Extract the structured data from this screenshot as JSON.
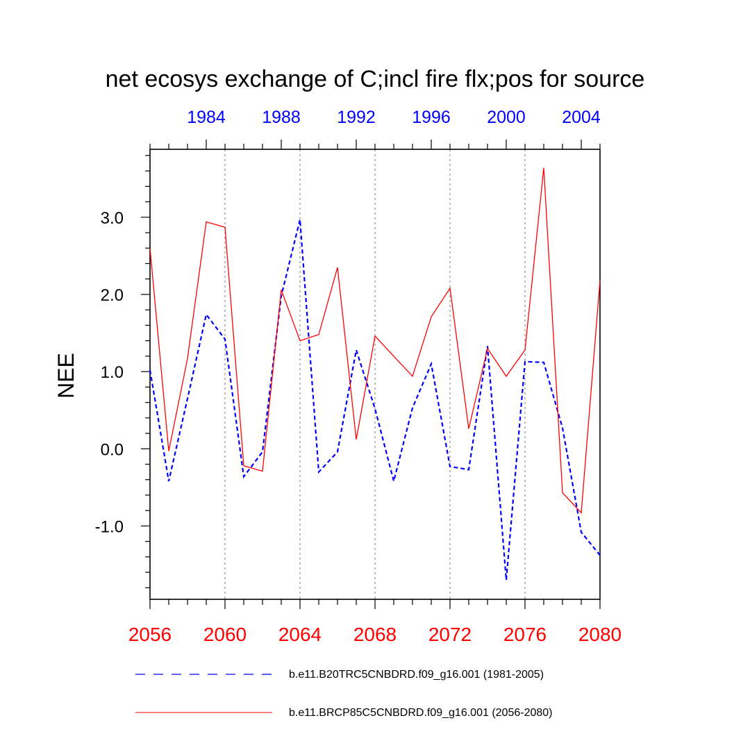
{
  "chart_data": {
    "type": "line",
    "title": "net ecosys exchange of C;incl fire flx;pos for source",
    "ylabel": "NEE",
    "xlabel": "",
    "ylim": [
      -1.95,
      3.88
    ],
    "y_ticks": [
      -1.0,
      0.0,
      1.0,
      2.0,
      3.0
    ],
    "y_tick_labels": [
      "-1.0",
      "0.0",
      "1.0",
      "2.0",
      "3.0"
    ],
    "y_minor_step": 0.2,
    "grid": "vertical dotted gray lines at labeled bottom-axis years",
    "x_bottom": {
      "range": [
        2056,
        2080
      ],
      "ticks": [
        2056,
        2060,
        2064,
        2068,
        2072,
        2076,
        2080
      ],
      "tick_labels": [
        "2056",
        "2060",
        "2064",
        "2068",
        "2072",
        "2076",
        "2080"
      ],
      "color": "#ff0000"
    },
    "x_top": {
      "range": [
        1981,
        2005
      ],
      "ticks": [
        1984,
        1988,
        1992,
        1996,
        2000,
        2004
      ],
      "tick_labels": [
        "1984",
        "1988",
        "1992",
        "1996",
        "2000",
        "2004"
      ],
      "color": "#0000ff"
    },
    "legend_position": "below plot",
    "series": [
      {
        "name": "b.e11.B20TRC5CNBDRD.f09_g16.001 (1981-2005)",
        "axis": "top",
        "color": "#0000ff",
        "style": "dashed",
        "x": [
          1981,
          1982,
          1983,
          1984,
          1985,
          1986,
          1987,
          1988,
          1989,
          1990,
          1991,
          1992,
          1993,
          1994,
          1995,
          1996,
          1997,
          1998,
          1999,
          2000,
          2001,
          2002,
          2003,
          2004,
          2005
        ],
        "values": [
          1.02,
          -0.42,
          0.65,
          1.74,
          1.42,
          -0.36,
          -0.04,
          1.98,
          2.97,
          -0.3,
          -0.04,
          1.28,
          0.52,
          -0.42,
          0.53,
          1.1,
          -0.23,
          -0.27,
          1.33,
          -1.7,
          1.13,
          1.12,
          0.27,
          -1.08,
          -1.38
        ]
      },
      {
        "name": "b.e11.BRCP85C5CNBDRD.f09_g16.001 (2056-2080)",
        "axis": "bottom",
        "color": "#ff0000",
        "style": "solid",
        "x": [
          2056,
          2057,
          2058,
          2059,
          2060,
          2061,
          2062,
          2063,
          2064,
          2065,
          2066,
          2067,
          2068,
          2069,
          2070,
          2071,
          2072,
          2073,
          2074,
          2075,
          2076,
          2077,
          2078,
          2079,
          2080
        ],
        "values": [
          2.6,
          -0.03,
          1.17,
          2.94,
          2.87,
          -0.22,
          -0.29,
          2.06,
          1.4,
          1.48,
          2.35,
          0.12,
          1.46,
          1.2,
          0.94,
          1.71,
          2.08,
          0.26,
          1.3,
          0.94,
          1.28,
          3.64,
          -0.57,
          -0.83,
          2.18
        ]
      }
    ]
  }
}
